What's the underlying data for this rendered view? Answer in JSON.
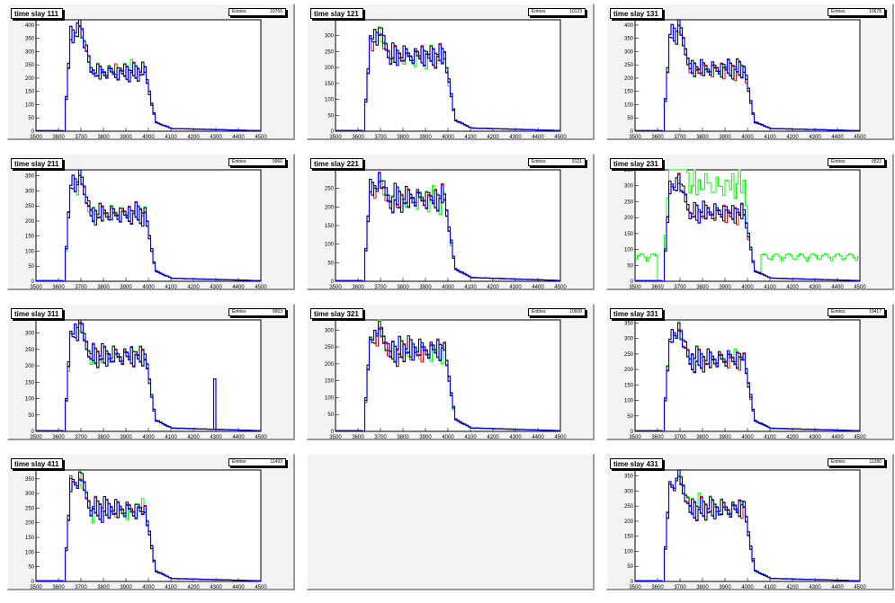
{
  "colors": {
    "red": "#ff0000",
    "green": "#00ff00",
    "blue": "#0000ff",
    "black": "#000000"
  },
  "chart_data": [
    {
      "type": "line",
      "title": "time slay 111",
      "stats_label": "Entries",
      "entries": "10766",
      "xlim": [
        3500,
        4500
      ],
      "ylim": [
        0,
        420
      ],
      "xticks": [
        3500,
        3600,
        3700,
        3800,
        3900,
        4000,
        4100,
        4200,
        4300,
        4400,
        4500
      ],
      "yticks": [
        0,
        50,
        100,
        150,
        200,
        250,
        300,
        350,
        400
      ],
      "peak": 410,
      "plateau": 230,
      "tail": 0
    },
    {
      "type": "line",
      "title": "time slay 121",
      "stats_label": "Entries",
      "entries": "10123",
      "xlim": [
        3500,
        4500
      ],
      "ylim": [
        0,
        350
      ],
      "xticks": [
        3500,
        3600,
        3700,
        3800,
        3900,
        4000,
        4100,
        4200,
        4300,
        4400,
        4500
      ],
      "yticks": [
        0,
        50,
        100,
        150,
        200,
        250,
        300
      ],
      "peak": 320,
      "plateau": 240,
      "tail": 0
    },
    {
      "type": "line",
      "title": "time slay 131",
      "stats_label": "Entries",
      "entries": "10678",
      "xlim": [
        3500,
        4500
      ],
      "ylim": [
        0,
        420
      ],
      "xticks": [
        3500,
        3600,
        3700,
        3800,
        3900,
        4000,
        4100,
        4200,
        4300,
        4400,
        4500
      ],
      "yticks": [
        0,
        50,
        100,
        150,
        200,
        250,
        300,
        350,
        400
      ],
      "peak": 400,
      "plateau": 240,
      "tail": 0
    },
    {
      "type": "line",
      "title": "time slay 211",
      "stats_label": "Entries",
      "entries": "9960",
      "xlim": [
        3500,
        4500
      ],
      "ylim": [
        0,
        370
      ],
      "xticks": [
        3500,
        3600,
        3700,
        3800,
        3900,
        4000,
        4100,
        4200,
        4300,
        4400,
        4500
      ],
      "yticks": [
        0,
        50,
        100,
        150,
        200,
        250,
        300,
        350
      ],
      "peak": 360,
      "plateau": 230,
      "tail": 0
    },
    {
      "type": "line",
      "title": "time slay 221",
      "stats_label": "Entries",
      "entries": "9121",
      "xlim": [
        3500,
        4500
      ],
      "ylim": [
        0,
        300
      ],
      "xticks": [
        3500,
        3600,
        3700,
        3800,
        3900,
        4000,
        4100,
        4200,
        4300,
        4400,
        4500
      ],
      "yticks": [
        0,
        50,
        100,
        150,
        200,
        250
      ],
      "peak": 280,
      "plateau": 225,
      "tail": 0
    },
    {
      "type": "line",
      "title": "time slay 231",
      "stats_label": "Entries",
      "entries": "9522",
      "xlim": [
        3500,
        4500
      ],
      "ylim": [
        0,
        350
      ],
      "xticks": [
        3500,
        3600,
        3700,
        3800,
        3900,
        4000,
        4100,
        4200,
        4300,
        4400,
        4500
      ],
      "yticks": [
        0,
        50,
        100,
        150,
        200,
        250,
        300,
        350
      ],
      "peak": 330,
      "plateau": 220,
      "tail": 0,
      "green_scale": 1.4,
      "green_tail": 75
    },
    {
      "type": "line",
      "title": "time slay 311",
      "stats_label": "Entries",
      "entries": "9963",
      "xlim": [
        3500,
        4500
      ],
      "ylim": [
        0,
        340
      ],
      "xticks": [
        3500,
        3600,
        3700,
        3800,
        3900,
        4000,
        4100,
        4200,
        4300,
        4400,
        4500
      ],
      "yticks": [
        0,
        50,
        100,
        150,
        200,
        250,
        300
      ],
      "peak": 330,
      "plateau": 235,
      "tail": 0,
      "spike": [
        4290,
        160
      ]
    },
    {
      "type": "line",
      "title": "time slay 321",
      "stats_label": "Entries",
      "entries": "10608",
      "xlim": [
        3500,
        4500
      ],
      "ylim": [
        0,
        330
      ],
      "xticks": [
        3500,
        3600,
        3700,
        3800,
        3900,
        4000,
        4100,
        4200,
        4300,
        4400,
        4500
      ],
      "yticks": [
        0,
        50,
        100,
        150,
        200,
        250,
        300
      ],
      "peak": 310,
      "plateau": 245,
      "tail": 0
    },
    {
      "type": "line",
      "title": "time slay 331",
      "stats_label": "Entries",
      "entries": "10417",
      "xlim": [
        3500,
        4500
      ],
      "ylim": [
        0,
        360
      ],
      "xticks": [
        3500,
        3600,
        3700,
        3800,
        3900,
        4000,
        4100,
        4200,
        4300,
        4400,
        4500
      ],
      "yticks": [
        0,
        50,
        100,
        150,
        200,
        250,
        300,
        350
      ],
      "peak": 340,
      "plateau": 240,
      "tail": 0
    },
    {
      "type": "line",
      "title": "time slay 411",
      "stats_label": "Entries",
      "entries": "11493",
      "xlim": [
        3500,
        4500
      ],
      "ylim": [
        0,
        380
      ],
      "xticks": [
        3500,
        3600,
        3700,
        3800,
        3900,
        4000,
        4100,
        4200,
        4300,
        4400,
        4500
      ],
      "yticks": [
        0,
        50,
        100,
        150,
        200,
        250,
        300,
        350
      ],
      "peak": 370,
      "plateau": 250,
      "tail": 0
    },
    {
      "type": "empty"
    },
    {
      "type": "line",
      "title": "time slay 431",
      "stats_label": "Entries",
      "entries": "11280",
      "xlim": [
        3500,
        4500
      ],
      "ylim": [
        0,
        370
      ],
      "xticks": [
        3500,
        3600,
        3700,
        3800,
        3900,
        4000,
        4100,
        4200,
        4300,
        4400,
        4500
      ],
      "yticks": [
        0,
        50,
        100,
        150,
        200,
        250,
        300,
        350
      ],
      "peak": 360,
      "plateau": 250,
      "tail": 0
    }
  ]
}
